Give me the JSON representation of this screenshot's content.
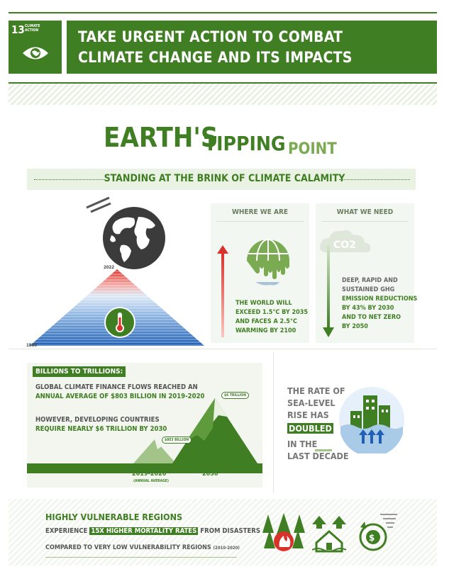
{
  "sdg": {
    "number": "13",
    "label": "CLIMATE ACTION"
  },
  "header": {
    "line1": "TAKE URGENT ACTION TO COMBAT",
    "line2": "CLIMATE CHANGE AND ITS IMPACTS"
  },
  "title": {
    "word1": "EARTH'S",
    "word2": "TIPPING",
    "word3": "POINT"
  },
  "subtitle": "STANDING AT THE BRINK OF CLIMATE CALAMITY",
  "warming_chart": {
    "year_top": "2022",
    "year_bottom": "1850"
  },
  "where_we_are": {
    "heading": "WHERE WE ARE",
    "lines": [
      "THE WORLD WILL",
      "EXCEED 1.5°C BY 2035",
      "AND FACES A 2.5°C",
      "WARMING BY 2100"
    ]
  },
  "what_we_need": {
    "heading": "WHAT WE NEED",
    "co2": "CO2",
    "lines": [
      "DEEP, RAPID AND",
      "SUSTAINED GHG",
      "EMISSION REDUCTIONS",
      "BY 43% BY 2030",
      "AND TO NET ZERO",
      "BY 2050"
    ]
  },
  "finance": {
    "tag": "BILLIONS TO TRILLIONS:",
    "p1_line1": "GLOBAL CLIMATE FINANCE FLOWS REACHED AN",
    "p1_line2": "ANNUAL AVERAGE OF $803 BILLION IN 2019-2020",
    "p2_line1": "HOWEVER, DEVELOPING COUNTRIES",
    "p2_line2": "REQUIRE NEARLY $6 TRILLION BY 2030",
    "small_label": "$803 BILLION",
    "big_label": "$6 TRILLION",
    "year1": "2019-2020",
    "year1_note": "(ANNUAL AVERAGE)",
    "year2": "2030"
  },
  "sea_level": {
    "lines": [
      "THE RATE OF",
      "SEA-LEVEL",
      "RISE HAS"
    ],
    "highlight": "DOUBLED",
    "tail1": "IN THE",
    "tail2": "LAST DECADE"
  },
  "vulnerable": {
    "heading": "HIGHLY VULNERABLE REGIONS",
    "line1_pre": "EXPERIENCE",
    "line1_hl": "15X HIGHER MORTALITY RATES",
    "line1_post": "FROM DISASTERS",
    "line2": "COMPARED TO VERY LOW VULNERABILITY REGIONS",
    "line2_note": "(2010-2020)"
  },
  "colors": {
    "primary": "#3f7e22",
    "hot": "#d9322b",
    "cold": "#1f5fb4"
  }
}
